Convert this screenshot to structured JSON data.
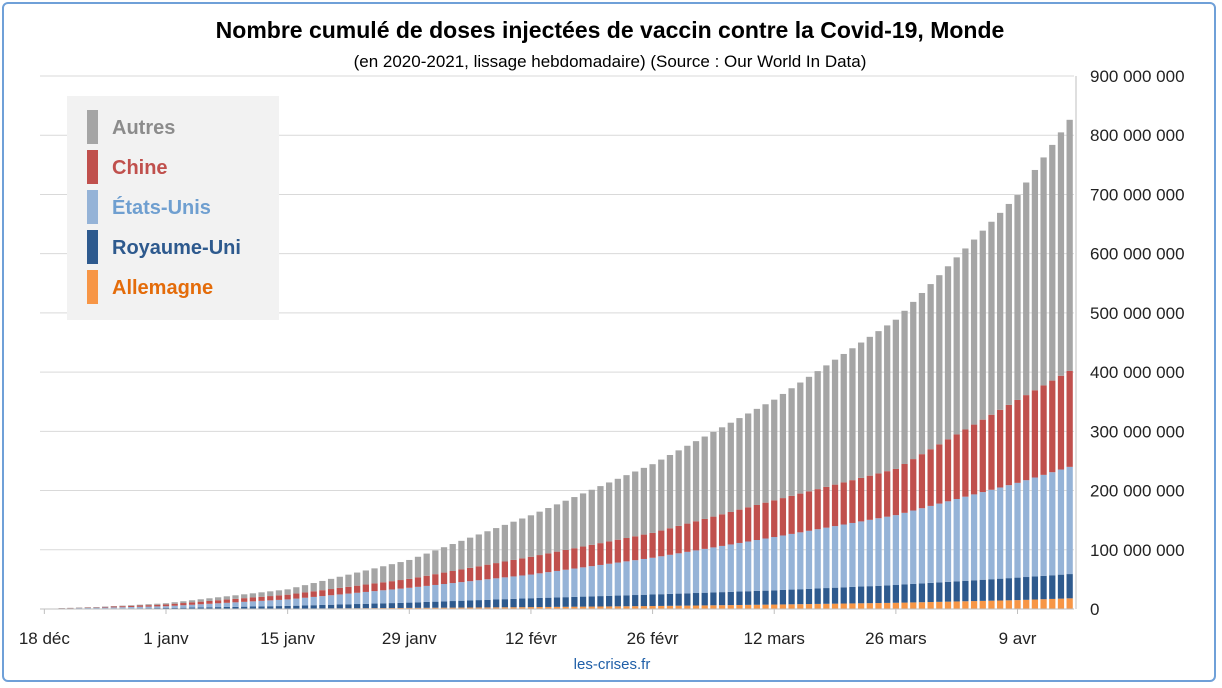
{
  "chart_data": {
    "type": "bar",
    "stacked": true,
    "title": "Nombre cumulé de doses injectées de vaccin contre la Covid-19, Monde",
    "subtitle": "(en 2020-2021, lissage hebdomadaire) (Source : Our World In Data)",
    "footer": "les-crises.fr",
    "ylim": [
      0,
      900000000
    ],
    "y_ticks": [
      {
        "value": 0,
        "label": "0"
      },
      {
        "value": 100000000,
        "label": "100 000 000"
      },
      {
        "value": 200000000,
        "label": "200 000 000"
      },
      {
        "value": 300000000,
        "label": "300 000 000"
      },
      {
        "value": 400000000,
        "label": "400 000 000"
      },
      {
        "value": 500000000,
        "label": "500 000 000"
      },
      {
        "value": 600000000,
        "label": "600 000 000"
      },
      {
        "value": 700000000,
        "label": "700 000 000"
      },
      {
        "value": 800000000,
        "label": "800 000 000"
      },
      {
        "value": 900000000,
        "label": "900 000 000"
      }
    ],
    "x_start_date": "2020-12-18",
    "x_end_date": "2021-04-15",
    "x_ticks": [
      {
        "date": "2020-12-18",
        "label": "18 déc"
      },
      {
        "date": "2021-01-01",
        "label": "1 janv"
      },
      {
        "date": "2021-01-15",
        "label": "15 janv"
      },
      {
        "date": "2021-01-29",
        "label": "29 janv"
      },
      {
        "date": "2021-02-12",
        "label": "12 févr"
      },
      {
        "date": "2021-02-26",
        "label": "26 févr"
      },
      {
        "date": "2021-03-12",
        "label": "12 mars"
      },
      {
        "date": "2021-03-26",
        "label": "26 mars"
      },
      {
        "date": "2021-04-09",
        "label": "9 avr"
      }
    ],
    "legend": {
      "position": "top-left"
    },
    "grid": true,
    "series": [
      {
        "name": "Allemagne",
        "color": "#f79646",
        "label_color": "#e46c0a",
        "keypoints": [
          [
            "2020-12-18",
            0
          ],
          [
            "2020-12-27",
            0
          ],
          [
            "2021-01-01",
            0.2
          ],
          [
            "2021-01-15",
            0.7
          ],
          [
            "2021-01-29",
            1.8
          ],
          [
            "2021-02-12",
            3.2
          ],
          [
            "2021-02-26",
            5.0
          ],
          [
            "2021-03-12",
            7.5
          ],
          [
            "2021-03-26",
            10.5
          ],
          [
            "2021-04-09",
            15.0
          ],
          [
            "2021-04-15",
            18.0
          ]
        ]
      },
      {
        "name": "Royaume-Uni",
        "color": "#2e5a8e",
        "label_color": "#2e5a8e",
        "keypoints": [
          [
            "2020-12-18",
            0
          ],
          [
            "2020-12-20",
            0.5
          ],
          [
            "2021-01-01",
            1.5
          ],
          [
            "2021-01-15",
            4.5
          ],
          [
            "2021-01-29",
            9.0
          ],
          [
            "2021-02-12",
            15.0
          ],
          [
            "2021-02-26",
            19.5
          ],
          [
            "2021-03-12",
            24.0
          ],
          [
            "2021-03-26",
            30.0
          ],
          [
            "2021-04-09",
            38.0
          ],
          [
            "2021-04-15",
            41.0
          ]
        ]
      },
      {
        "name": "États-Unis",
        "color": "#95b3d7",
        "label_color": "#6f9fd0",
        "keypoints": [
          [
            "2020-12-18",
            0
          ],
          [
            "2020-12-20",
            0.5
          ],
          [
            "2021-01-01",
            3.0
          ],
          [
            "2021-01-15",
            11.0
          ],
          [
            "2021-01-29",
            25.0
          ],
          [
            "2021-02-12",
            40.0
          ],
          [
            "2021-02-26",
            62.0
          ],
          [
            "2021-03-12",
            90.0
          ],
          [
            "2021-03-26",
            118.0
          ],
          [
            "2021-04-09",
            160.0
          ],
          [
            "2021-04-15",
            181.0
          ]
        ]
      },
      {
        "name": "Chine",
        "color": "#c0504d",
        "label_color": "#c0504d",
        "keypoints": [
          [
            "2020-12-18",
            0
          ],
          [
            "2020-12-24",
            1.0
          ],
          [
            "2021-01-01",
            3.0
          ],
          [
            "2021-01-15",
            8.0
          ],
          [
            "2021-01-29",
            15.0
          ],
          [
            "2021-02-12",
            30.0
          ],
          [
            "2021-02-26",
            42.0
          ],
          [
            "2021-03-12",
            62.0
          ],
          [
            "2021-03-26",
            78.0
          ],
          [
            "2021-04-09",
            140.0
          ],
          [
            "2021-04-15",
            162.0
          ]
        ]
      },
      {
        "name": "Autres",
        "color": "#a5a5a5",
        "label_color": "#8c8c8c",
        "keypoints": [
          [
            "2020-12-18",
            0
          ],
          [
            "2020-12-24",
            0.2
          ],
          [
            "2021-01-01",
            2.0
          ],
          [
            "2021-01-15",
            9.0
          ],
          [
            "2021-01-29",
            32.0
          ],
          [
            "2021-02-12",
            70.0
          ],
          [
            "2021-02-26",
            116.0
          ],
          [
            "2021-03-12",
            170.0
          ],
          [
            "2021-03-26",
            252.0
          ],
          [
            "2021-04-09",
            346.0
          ],
          [
            "2021-04-15",
            424.0
          ]
        ]
      }
    ],
    "value_unit_multiplier": 1000000
  }
}
